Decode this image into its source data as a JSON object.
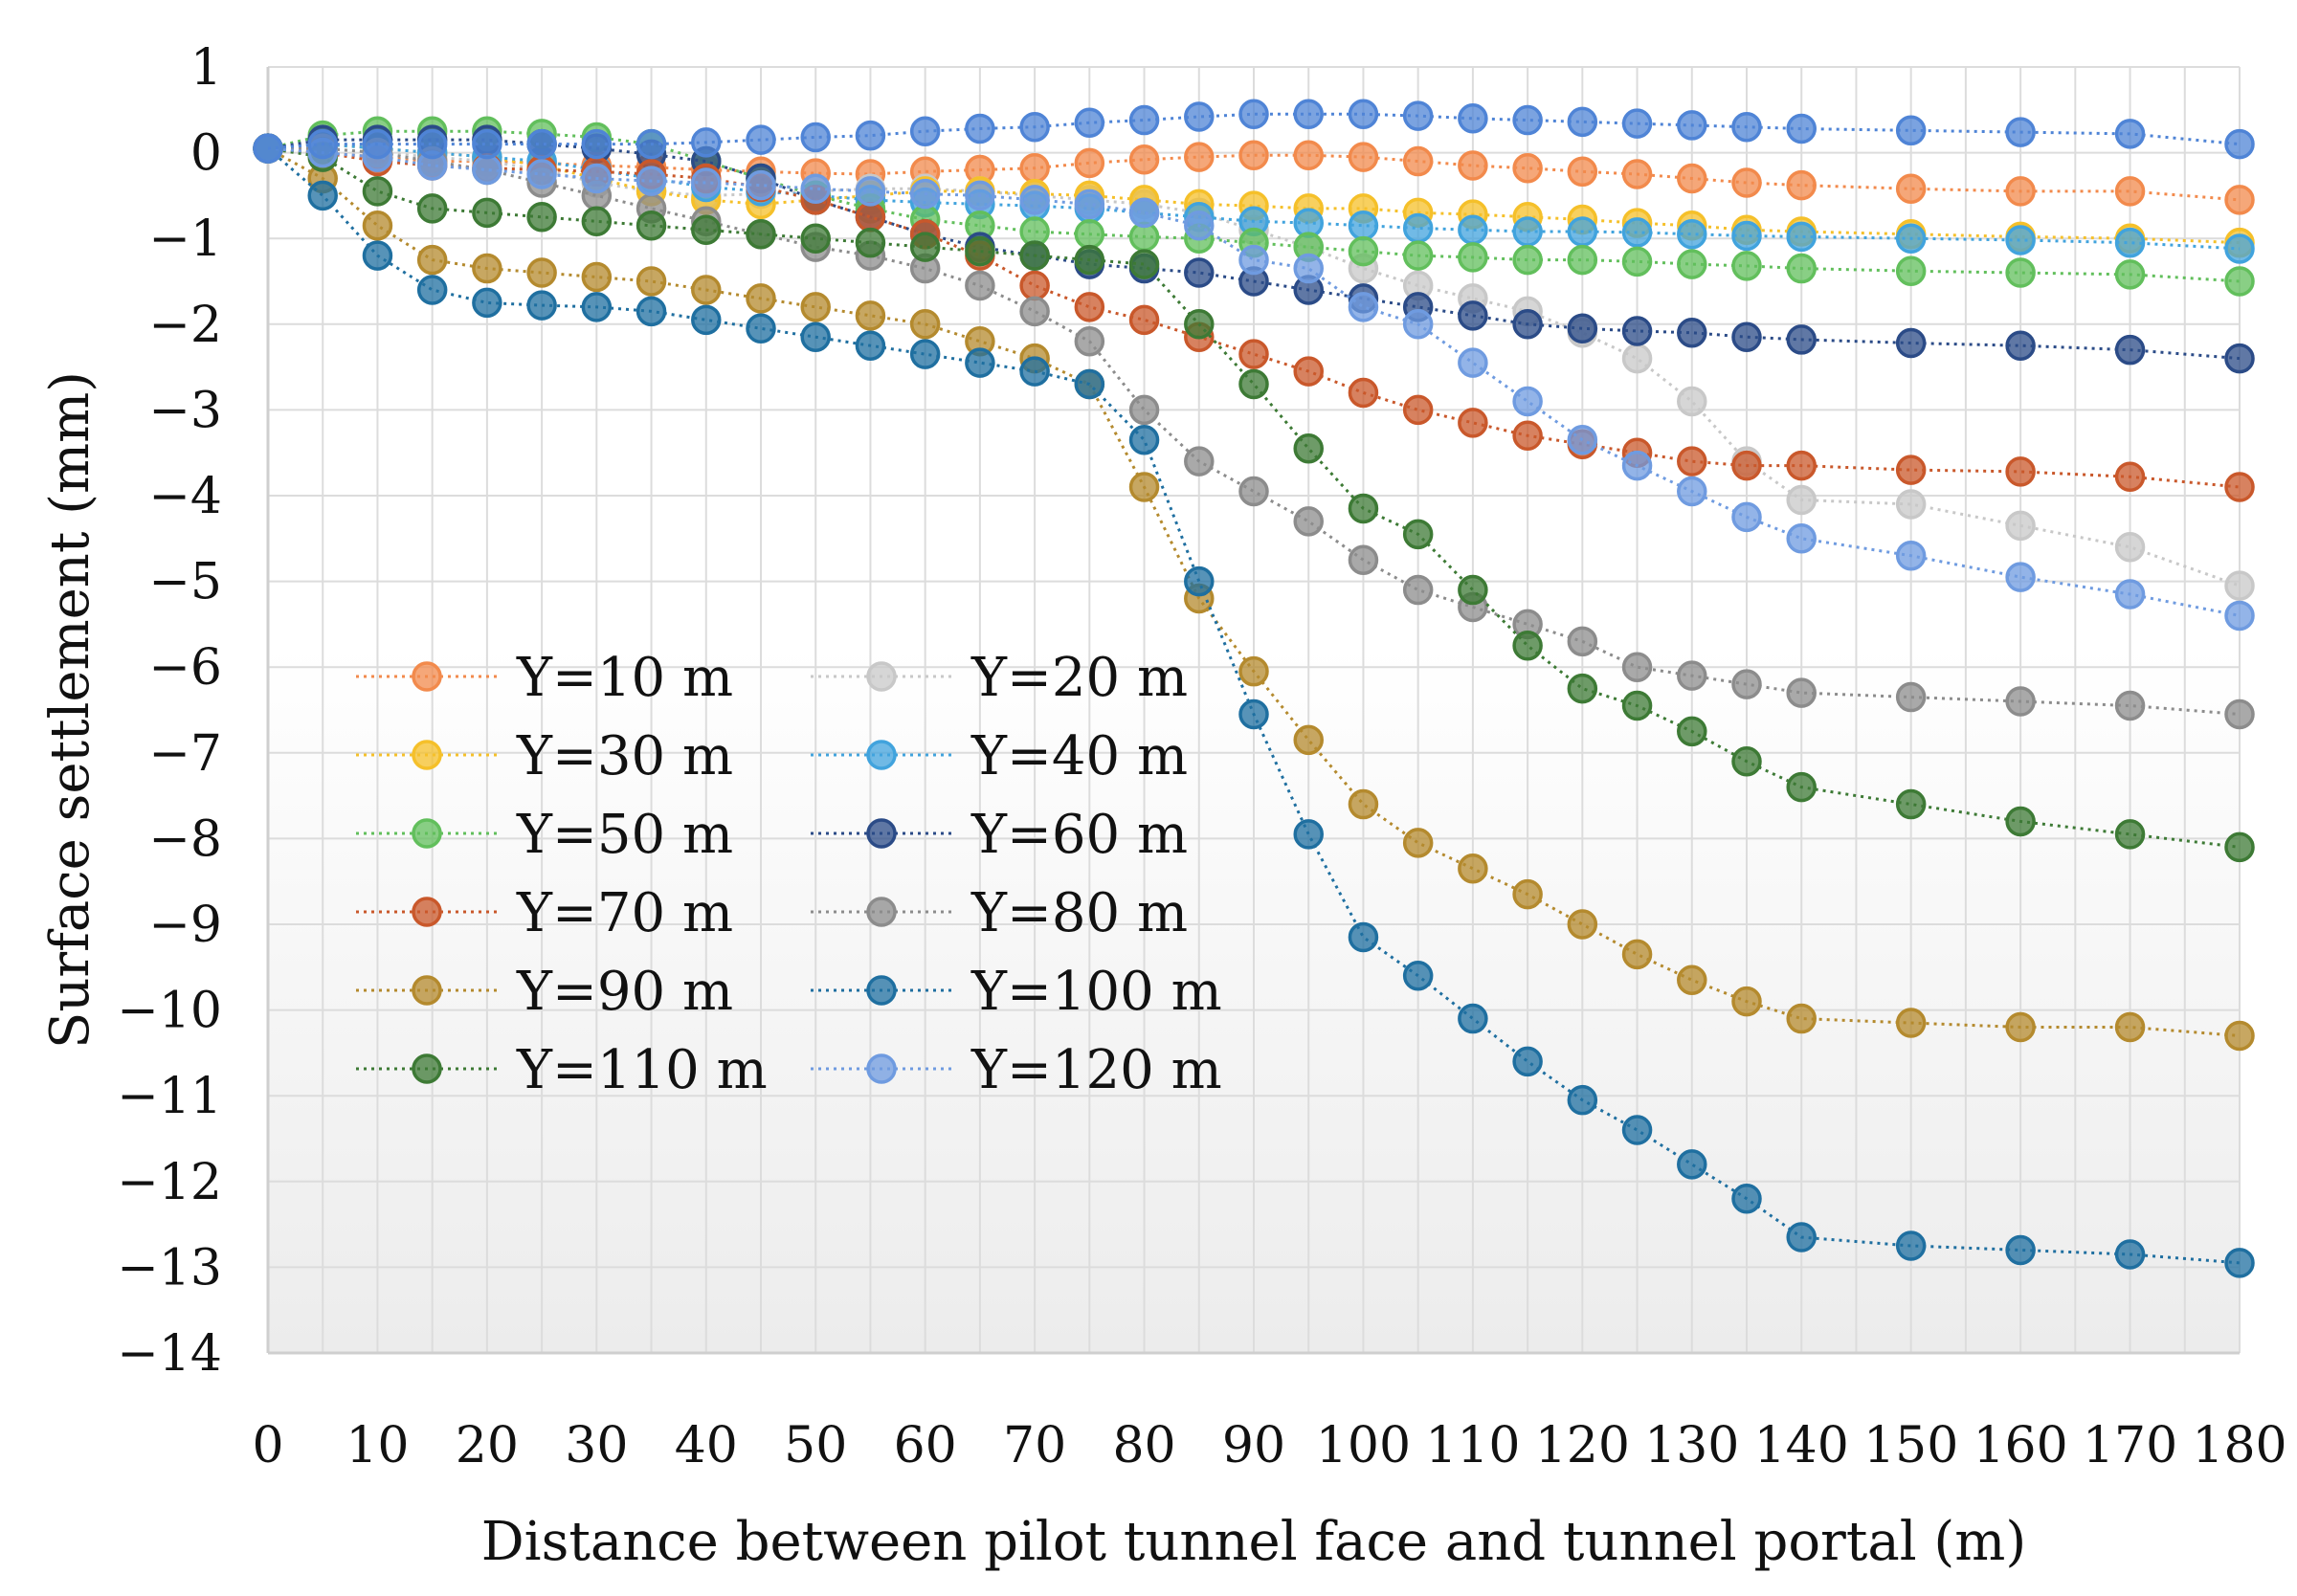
{
  "chart_data": {
    "type": "line",
    "title": "",
    "xlabel": "Distance between pilot tunnel face and tunnel portal (m)",
    "ylabel": "Surface settlement (mm)",
    "xlim": [
      0,
      180
    ],
    "ylim": [
      -14,
      1
    ],
    "grid": true,
    "legend": "lower-left, two columns",
    "x": [
      0,
      5,
      10,
      15,
      20,
      25,
      30,
      35,
      40,
      45,
      50,
      55,
      60,
      65,
      70,
      75,
      80,
      85,
      90,
      95,
      100,
      105,
      110,
      115,
      120,
      125,
      130,
      135,
      140,
      150,
      160,
      170,
      180
    ],
    "x_ticks": [
      "0",
      "10",
      "20",
      "30",
      "40",
      "50",
      "60",
      "70",
      "80",
      "90",
      "100",
      "110",
      "120",
      "130",
      "140",
      "150",
      "160",
      "170",
      "180"
    ],
    "y_ticks": [
      "1",
      "0",
      "−1",
      "−2",
      "−3",
      "−4",
      "−5",
      "−6",
      "−7",
      "−8",
      "−9",
      "−10",
      "−11",
      "−12",
      "−13",
      "−14"
    ],
    "series": [
      {
        "name": "Y=10 m",
        "color": "#f28a4c",
        "values": [
          0.05,
          0.0,
          -0.05,
          -0.1,
          -0.1,
          -0.12,
          -0.15,
          -0.17,
          -0.2,
          -0.22,
          -0.24,
          -0.25,
          -0.22,
          -0.2,
          -0.18,
          -0.12,
          -0.08,
          -0.05,
          -0.03,
          -0.03,
          -0.05,
          -0.1,
          -0.15,
          -0.18,
          -0.22,
          -0.25,
          -0.3,
          -0.35,
          -0.38,
          -0.42,
          -0.45,
          -0.45,
          -0.55
        ]
      },
      {
        "name": "Y=20 m",
        "color": "#c8c8c8",
        "values": [
          0.05,
          0.05,
          0.0,
          -0.05,
          -0.1,
          -0.2,
          -0.35,
          -0.45,
          -0.5,
          -0.48,
          -0.45,
          -0.42,
          -0.42,
          -0.45,
          -0.5,
          -0.55,
          -0.6,
          -0.7,
          -0.9,
          -1.1,
          -1.35,
          -1.55,
          -1.7,
          -1.85,
          -2.1,
          -2.4,
          -2.9,
          -3.6,
          -4.05,
          -4.1,
          -4.35,
          -4.6,
          -5.05
        ]
      },
      {
        "name": "Y=30 m",
        "color": "#f5c02a",
        "values": [
          0.05,
          0.1,
          0.05,
          0.0,
          -0.05,
          -0.15,
          -0.3,
          -0.45,
          -0.55,
          -0.6,
          -0.55,
          -0.5,
          -0.45,
          -0.45,
          -0.48,
          -0.5,
          -0.55,
          -0.6,
          -0.62,
          -0.65,
          -0.65,
          -0.7,
          -0.72,
          -0.75,
          -0.78,
          -0.82,
          -0.85,
          -0.9,
          -0.92,
          -0.95,
          -0.98,
          -1.0,
          -1.05
        ]
      },
      {
        "name": "Y=40 m",
        "color": "#41a3dd",
        "values": [
          0.05,
          0.1,
          0.05,
          0.0,
          -0.05,
          -0.1,
          -0.2,
          -0.3,
          -0.4,
          -0.45,
          -0.5,
          -0.55,
          -0.58,
          -0.6,
          -0.62,
          -0.65,
          -0.7,
          -0.75,
          -0.8,
          -0.82,
          -0.85,
          -0.88,
          -0.9,
          -0.92,
          -0.92,
          -0.93,
          -0.95,
          -0.97,
          -0.98,
          -1.0,
          -1.02,
          -1.05,
          -1.12
        ]
      },
      {
        "name": "Y=50 m",
        "color": "#62bf5c",
        "values": [
          0.05,
          0.2,
          0.25,
          0.25,
          0.25,
          0.22,
          0.18,
          0.1,
          -0.1,
          -0.3,
          -0.5,
          -0.65,
          -0.78,
          -0.85,
          -0.92,
          -0.95,
          -0.98,
          -1.0,
          -1.05,
          -1.1,
          -1.15,
          -1.2,
          -1.22,
          -1.25,
          -1.25,
          -1.27,
          -1.3,
          -1.32,
          -1.35,
          -1.38,
          -1.4,
          -1.42,
          -1.5
        ]
      },
      {
        "name": "Y=60 m",
        "color": "#2b4b87",
        "values": [
          0.05,
          0.15,
          0.15,
          0.15,
          0.15,
          0.1,
          0.05,
          -0.02,
          -0.1,
          -0.3,
          -0.55,
          -0.75,
          -0.95,
          -1.1,
          -1.2,
          -1.3,
          -1.35,
          -1.4,
          -1.5,
          -1.6,
          -1.7,
          -1.8,
          -1.9,
          -2.0,
          -2.05,
          -2.08,
          -2.1,
          -2.15,
          -2.18,
          -2.22,
          -2.25,
          -2.3,
          -2.4
        ]
      },
      {
        "name": "Y=70 m",
        "color": "#c9582b",
        "values": [
          0.05,
          0.0,
          -0.1,
          -0.15,
          -0.18,
          -0.2,
          -0.22,
          -0.25,
          -0.3,
          -0.4,
          -0.55,
          -0.75,
          -0.95,
          -1.2,
          -1.55,
          -1.8,
          -1.95,
          -2.15,
          -2.35,
          -2.55,
          -2.8,
          -3.0,
          -3.15,
          -3.3,
          -3.4,
          -3.5,
          -3.6,
          -3.65,
          -3.65,
          -3.7,
          -3.72,
          -3.78,
          -3.9
        ]
      },
      {
        "name": "Y=80 m",
        "color": "#8c8c8c",
        "values": [
          0.05,
          0.05,
          0.0,
          -0.1,
          -0.2,
          -0.35,
          -0.5,
          -0.65,
          -0.8,
          -0.95,
          -1.1,
          -1.2,
          -1.35,
          -1.55,
          -1.85,
          -2.2,
          -3.0,
          -3.6,
          -3.95,
          -4.3,
          -4.75,
          -5.1,
          -5.3,
          -5.5,
          -5.7,
          -6.0,
          -6.1,
          -6.2,
          -6.3,
          -6.35,
          -6.4,
          -6.45,
          -6.55
        ]
      },
      {
        "name": "Y=90 m",
        "color": "#b48a2e",
        "values": [
          0.05,
          -0.3,
          -0.85,
          -1.25,
          -1.35,
          -1.4,
          -1.45,
          -1.5,
          -1.6,
          -1.7,
          -1.8,
          -1.9,
          -2.0,
          -2.2,
          -2.4,
          -2.7,
          -3.9,
          -5.2,
          -6.05,
          -6.85,
          -7.6,
          -8.05,
          -8.35,
          -8.65,
          -9.0,
          -9.35,
          -9.65,
          -9.9,
          -10.1,
          -10.15,
          -10.2,
          -10.2,
          -10.3
        ]
      },
      {
        "name": "Y=100 m",
        "color": "#1f6fa0",
        "values": [
          0.05,
          -0.5,
          -1.2,
          -1.6,
          -1.75,
          -1.78,
          -1.8,
          -1.85,
          -1.95,
          -2.05,
          -2.15,
          -2.25,
          -2.35,
          -2.45,
          -2.55,
          -2.7,
          -3.35,
          -5.0,
          -6.55,
          -7.95,
          -9.15,
          -9.6,
          -10.1,
          -10.6,
          -11.05,
          -11.4,
          -11.8,
          -12.2,
          -12.65,
          -12.75,
          -12.8,
          -12.85,
          -12.95
        ]
      },
      {
        "name": "Y=110 m",
        "color": "#3d7a35",
        "values": [
          0.05,
          -0.05,
          -0.45,
          -0.65,
          -0.7,
          -0.75,
          -0.8,
          -0.85,
          -0.9,
          -0.95,
          -1.0,
          -1.05,
          -1.1,
          -1.15,
          -1.2,
          -1.25,
          -1.3,
          -2.0,
          -2.7,
          -3.45,
          -4.15,
          -4.45,
          -5.1,
          -5.75,
          -6.25,
          -6.45,
          -6.75,
          -7.1,
          -7.4,
          -7.6,
          -7.8,
          -7.95,
          -8.1
        ]
      },
      {
        "name": "Y=120 m",
        "color": "#6f9be0",
        "values": [
          0.05,
          0.0,
          -0.05,
          -0.15,
          -0.2,
          -0.25,
          -0.3,
          -0.33,
          -0.35,
          -0.38,
          -0.42,
          -0.45,
          -0.48,
          -0.5,
          -0.55,
          -0.6,
          -0.7,
          -0.85,
          -1.25,
          -1.35,
          -1.8,
          -2.0,
          -2.45,
          -2.9,
          -3.35,
          -3.65,
          -3.95,
          -4.25,
          -4.5,
          -4.7,
          -4.95,
          -5.15,
          -5.4
        ]
      },
      {
        "name": "",
        "color": "#4f84d6",
        "values": [
          0.05,
          0.1,
          0.1,
          0.1,
          0.1,
          0.1,
          0.1,
          0.1,
          0.12,
          0.15,
          0.18,
          0.2,
          0.25,
          0.28,
          0.3,
          0.35,
          0.38,
          0.42,
          0.45,
          0.45,
          0.45,
          0.43,
          0.4,
          0.38,
          0.36,
          0.34,
          0.32,
          0.3,
          0.28,
          0.26,
          0.24,
          0.22,
          0.1
        ]
      }
    ]
  }
}
